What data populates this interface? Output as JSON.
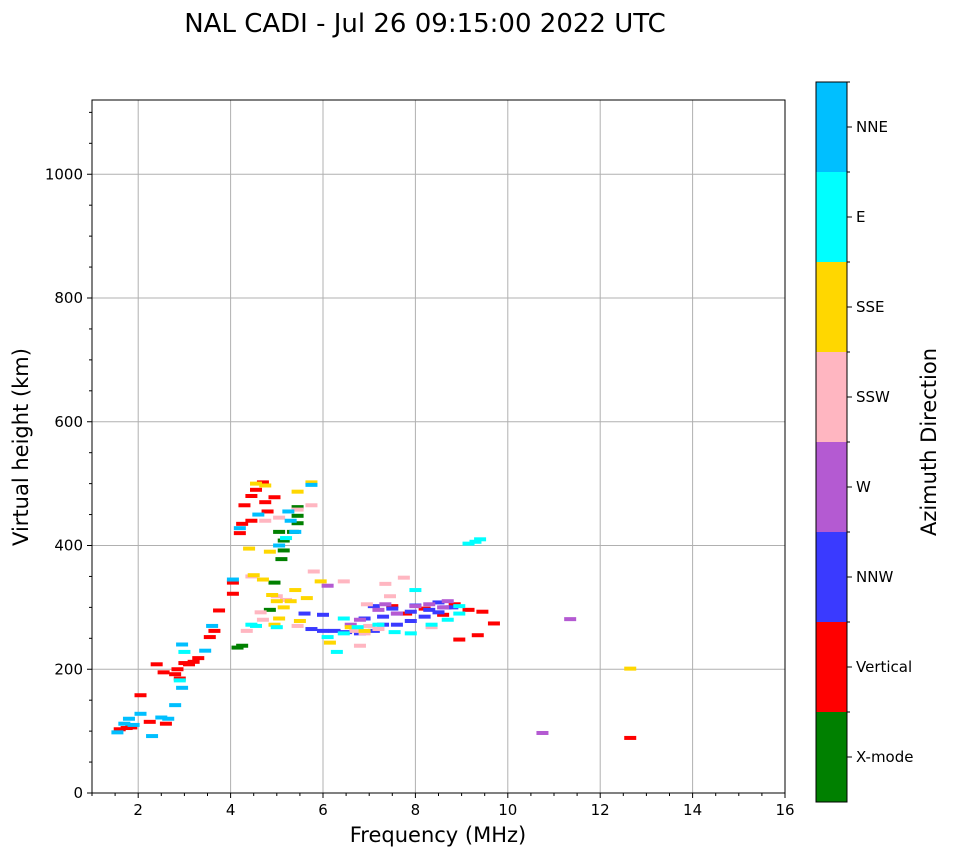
{
  "chart_data": {
    "type": "scatter",
    "title": "NAL CADI - Jul 26 09:15:00 2022 UTC",
    "xlabel": "Frequency (MHz)",
    "ylabel": "Virtual height (km)",
    "xlim": [
      1,
      16
    ],
    "ylim": [
      0,
      1120
    ],
    "xticks": [
      2,
      4,
      6,
      8,
      10,
      12,
      14,
      16
    ],
    "yticks": [
      0,
      200,
      400,
      600,
      800,
      1000
    ],
    "xtick_labels": [
      "2",
      "4",
      "6",
      "8",
      "10",
      "12",
      "14",
      "16"
    ],
    "ytick_labels": [
      "0",
      "200",
      "400",
      "600",
      "800",
      "1000"
    ],
    "grid": true,
    "colorbar": {
      "label": "Azimuth Direction",
      "categories": [
        {
          "name": "X-mode",
          "color": "#008000"
        },
        {
          "name": "Vertical",
          "color": "#ff0000"
        },
        {
          "name": "NNW",
          "color": "#3a3aff"
        },
        {
          "name": "W",
          "color": "#b45ad2"
        },
        {
          "name": "SSW",
          "color": "#ffb6c1"
        },
        {
          "name": "SSE",
          "color": "#ffd700"
        },
        {
          "name": "E",
          "color": "#00ffff"
        },
        {
          "name": "NNE",
          "color": "#00bfff"
        }
      ]
    },
    "series": [
      {
        "name": "Vertical",
        "points": [
          [
            1.6,
            103
          ],
          [
            1.75,
            105
          ],
          [
            1.85,
            106
          ],
          [
            2.05,
            158
          ],
          [
            2.25,
            115
          ],
          [
            2.4,
            208
          ],
          [
            2.55,
            195
          ],
          [
            2.6,
            112
          ],
          [
            2.8,
            192
          ],
          [
            2.85,
            200
          ],
          [
            2.9,
            185
          ],
          [
            3.0,
            210
          ],
          [
            3.1,
            208
          ],
          [
            3.2,
            212
          ],
          [
            3.3,
            218
          ],
          [
            3.55,
            252
          ],
          [
            3.65,
            262
          ],
          [
            3.75,
            295
          ],
          [
            4.05,
            322
          ],
          [
            4.05,
            340
          ],
          [
            4.2,
            420
          ],
          [
            4.25,
            435
          ],
          [
            4.3,
            465
          ],
          [
            4.45,
            480
          ],
          [
            4.55,
            490
          ],
          [
            4.7,
            502
          ],
          [
            4.75,
            470
          ],
          [
            4.45,
            440
          ],
          [
            4.8,
            455
          ],
          [
            4.95,
            478
          ],
          [
            7.5,
            302
          ],
          [
            7.8,
            290
          ],
          [
            8.2,
            298
          ],
          [
            8.6,
            288
          ],
          [
            8.85,
            305
          ],
          [
            9.15,
            296
          ],
          [
            9.45,
            293
          ],
          [
            9.7,
            274
          ],
          [
            8.95,
            248
          ],
          [
            9.35,
            255
          ],
          [
            12.65,
            89
          ]
        ]
      },
      {
        "name": "X-mode",
        "points": [
          [
            4.15,
            235
          ],
          [
            4.25,
            238
          ],
          [
            4.85,
            296
          ],
          [
            4.95,
            340
          ],
          [
            5.1,
            378
          ],
          [
            5.15,
            392
          ],
          [
            5.15,
            408
          ],
          [
            5.35,
            422
          ],
          [
            5.45,
            448
          ],
          [
            5.45,
            462
          ],
          [
            5.45,
            436
          ],
          [
            5.05,
            422
          ]
        ]
      },
      {
        "name": "NNW",
        "points": [
          [
            5.75,
            265
          ],
          [
            6.0,
            262
          ],
          [
            6.25,
            262
          ],
          [
            6.5,
            260
          ],
          [
            6.8,
            258
          ],
          [
            7.1,
            262
          ],
          [
            7.3,
            272
          ],
          [
            7.6,
            272
          ],
          [
            7.9,
            278
          ],
          [
            8.2,
            285
          ],
          [
            8.5,
            292
          ],
          [
            8.8,
            300
          ],
          [
            6.9,
            282
          ],
          [
            7.3,
            285
          ],
          [
            7.6,
            290
          ],
          [
            7.9,
            293
          ],
          [
            8.3,
            296
          ],
          [
            8.65,
            300
          ],
          [
            8.5,
            308
          ],
          [
            6.0,
            288
          ],
          [
            5.6,
            290
          ],
          [
            7.5,
            298
          ],
          [
            7.1,
            302
          ],
          [
            8.0,
            303
          ]
        ]
      },
      {
        "name": "W",
        "points": [
          [
            6.6,
            272
          ],
          [
            6.8,
            280
          ],
          [
            7.2,
            296
          ],
          [
            7.6,
            290
          ],
          [
            8.0,
            302
          ],
          [
            8.3,
            305
          ],
          [
            8.6,
            300
          ],
          [
            11.35,
            281
          ],
          [
            10.75,
            97
          ],
          [
            6.1,
            335
          ],
          [
            7.35,
            305
          ],
          [
            8.7,
            310
          ]
        ]
      },
      {
        "name": "SSW",
        "points": [
          [
            4.35,
            262
          ],
          [
            4.65,
            292
          ],
          [
            4.7,
            280
          ],
          [
            5.0,
            318
          ],
          [
            5.2,
            312
          ],
          [
            5.45,
            270
          ],
          [
            5.8,
            358
          ],
          [
            6.45,
            342
          ],
          [
            6.7,
            262
          ],
          [
            6.9,
            258
          ],
          [
            7.2,
            265
          ],
          [
            7.45,
            318
          ],
          [
            7.75,
            348
          ],
          [
            7.35,
            338
          ],
          [
            4.75,
            440
          ],
          [
            5.45,
            458
          ],
          [
            5.05,
            445
          ],
          [
            5.75,
            465
          ],
          [
            6.8,
            238
          ],
          [
            8.35,
            268
          ],
          [
            4.45,
            350
          ],
          [
            7.0,
            270
          ],
          [
            6.95,
            305
          ]
        ]
      },
      {
        "name": "SSE",
        "points": [
          [
            4.4,
            395
          ],
          [
            4.5,
            352
          ],
          [
            4.7,
            345
          ],
          [
            4.9,
            320
          ],
          [
            5.0,
            310
          ],
          [
            5.15,
            300
          ],
          [
            5.3,
            310
          ],
          [
            5.05,
            282
          ],
          [
            5.5,
            278
          ],
          [
            5.65,
            315
          ],
          [
            5.95,
            342
          ],
          [
            4.75,
            497
          ],
          [
            5.45,
            487
          ],
          [
            5.75,
            502
          ],
          [
            4.95,
            272
          ],
          [
            6.6,
            268
          ],
          [
            6.9,
            262
          ],
          [
            4.55,
            500
          ],
          [
            12.65,
            201
          ],
          [
            5.4,
            328
          ],
          [
            4.85,
            390
          ],
          [
            6.15,
            243
          ]
        ]
      },
      {
        "name": "E",
        "points": [
          [
            3.0,
            228
          ],
          [
            2.9,
            182
          ],
          [
            4.55,
            270
          ],
          [
            5.0,
            268
          ],
          [
            6.1,
            252
          ],
          [
            6.45,
            258
          ],
          [
            6.75,
            268
          ],
          [
            7.2,
            272
          ],
          [
            7.55,
            260
          ],
          [
            7.9,
            258
          ],
          [
            8.35,
            272
          ],
          [
            8.7,
            280
          ],
          [
            8.95,
            290
          ],
          [
            9.15,
            403
          ],
          [
            9.3,
            406
          ],
          [
            9.4,
            410
          ],
          [
            8.0,
            328
          ],
          [
            4.45,
            272
          ],
          [
            5.2,
            412
          ],
          [
            8.95,
            302
          ],
          [
            6.45,
            282
          ],
          [
            6.3,
            228
          ]
        ]
      },
      {
        "name": "NNE",
        "points": [
          [
            1.55,
            98
          ],
          [
            1.7,
            112
          ],
          [
            1.9,
            110
          ],
          [
            2.3,
            92
          ],
          [
            2.5,
            122
          ],
          [
            2.65,
            120
          ],
          [
            2.8,
            142
          ],
          [
            2.95,
            170
          ],
          [
            2.95,
            240
          ],
          [
            3.45,
            230
          ],
          [
            3.6,
            270
          ],
          [
            4.05,
            345
          ],
          [
            5.05,
            400
          ],
          [
            5.25,
            455
          ],
          [
            5.3,
            440
          ],
          [
            5.75,
            498
          ],
          [
            4.6,
            450
          ],
          [
            4.2,
            428
          ],
          [
            5.4,
            422
          ],
          [
            2.05,
            128
          ],
          [
            1.8,
            120
          ]
        ]
      }
    ]
  }
}
